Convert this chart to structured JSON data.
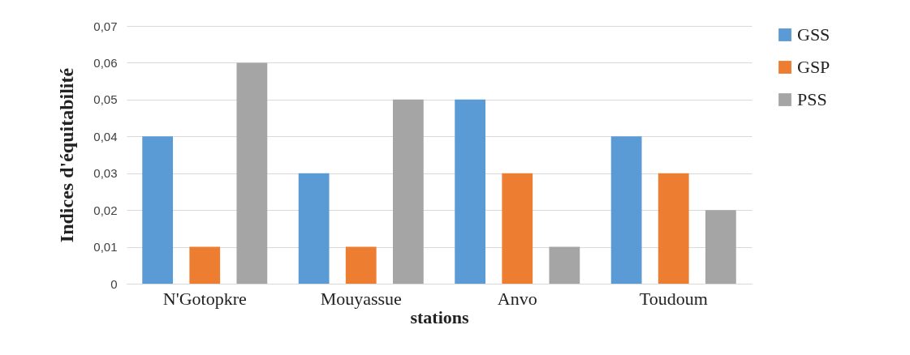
{
  "chart_data": {
    "type": "bar",
    "xlabel": "stations",
    "ylabel": "Indices d'équitabilité",
    "categories": [
      "N'Gotopkre",
      "Mouyassue",
      "Anvo",
      "Toudoum"
    ],
    "series": [
      {
        "name": "GSS",
        "color": "#5b9bd5",
        "values": [
          0.04,
          0.03,
          0.05,
          0.04
        ]
      },
      {
        "name": "GSP",
        "color": "#ed7d31",
        "values": [
          0.01,
          0.01,
          0.03,
          0.03
        ]
      },
      {
        "name": "PSS",
        "color": "#a5a5a5",
        "values": [
          0.06,
          0.05,
          0.01,
          0.02
        ]
      }
    ],
    "ylim": [
      0,
      0.07
    ],
    "yticks": [
      0,
      {
        "value": 0.01,
        "label": "0,01"
      },
      {
        "value": 0.02,
        "label": "0,02"
      },
      {
        "value": 0.03,
        "label": "0,03"
      },
      {
        "value": 0.04,
        "label": "0,04"
      },
      {
        "value": 0.05,
        "label": "0,05"
      },
      {
        "value": 0.06,
        "label": "0,06"
      },
      {
        "value": 0.07,
        "label": "0,07"
      }
    ],
    "grid": "y",
    "legend": "right"
  }
}
